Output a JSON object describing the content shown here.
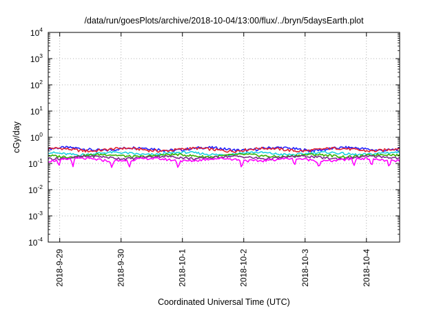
{
  "chart_data": {
    "type": "line",
    "title": "/data/run/goesPlots/archive/2018-10-04/13:00/flux/../bryn/5daysEarth.plot",
    "xlabel": "Coordinated Universal Time (UTC)",
    "ylabel": "cGy/day",
    "yscale": "log",
    "ylim": [
      0.0001,
      10000
    ],
    "xlim": [
      "2018-09-28T19:30",
      "2018-10-04T13:00"
    ],
    "x_ticks": [
      "2018-9-29",
      "2018-9-30",
      "2018-10-1",
      "2018-10-2",
      "2018-10-3",
      "2018-10-4"
    ],
    "y_ticks": [
      {
        "base": "10",
        "exp": "-4"
      },
      {
        "base": "10",
        "exp": "-3"
      },
      {
        "base": "10",
        "exp": "-2"
      },
      {
        "base": "10",
        "exp": "-1"
      },
      {
        "base": "10",
        "exp": "0"
      },
      {
        "base": "10",
        "exp": "1"
      },
      {
        "base": "10",
        "exp": "2"
      },
      {
        "base": "10",
        "exp": "3"
      },
      {
        "base": "10",
        "exp": "4"
      }
    ],
    "grid": true,
    "series": [
      {
        "color": "#2020ff",
        "level": 0.36,
        "amp": 0.09,
        "dips": false
      },
      {
        "color": "#e0202f",
        "level": 0.34,
        "amp": 0.08,
        "dips": false
      },
      {
        "color": "#1fd0e0",
        "level": 0.24,
        "amp": 0.05,
        "dips": false
      },
      {
        "color": "#38b000",
        "level": 0.2,
        "amp": 0.04,
        "dips": false
      },
      {
        "color": "#7a2a8a",
        "level": 0.17,
        "amp": 0.035,
        "dips": false
      },
      {
        "color": "#ff00ff",
        "level": 0.14,
        "amp": 0.03,
        "dips": true
      }
    ]
  }
}
